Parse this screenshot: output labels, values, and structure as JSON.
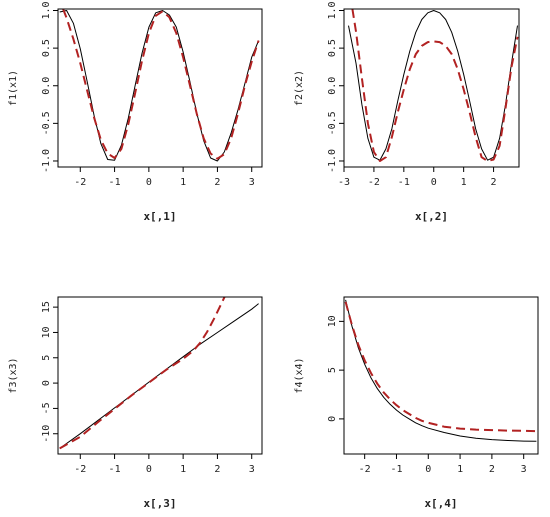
{
  "chart_data": [
    {
      "type": "line",
      "xlabel": "x[,1]",
      "ylabel": "f1(x1)",
      "xlim": [
        -2.65,
        3.3
      ],
      "ylim": [
        -1.08,
        1.02
      ],
      "xticks": [
        -2,
        -1,
        0,
        1,
        2,
        3
      ],
      "xtick_labels": [
        "-2",
        "-1",
        "0",
        "1",
        "2",
        "3"
      ],
      "yticks": [
        -1.0,
        -0.5,
        0.0,
        0.5,
        1.0
      ],
      "ytick_labels": [
        "-1.0",
        "-0.5",
        "0.0",
        "0.5",
        "1.0"
      ],
      "series": [
        {
          "style": "solid",
          "color": "#000000",
          "x": [
            -2.6,
            -2.4,
            -2.2,
            -2.0,
            -1.8,
            -1.6,
            -1.4,
            -1.2,
            -1.0,
            -0.8,
            -0.6,
            -0.4,
            -0.2,
            0.0,
            0.2,
            0.4,
            0.6,
            0.8,
            1.0,
            1.2,
            1.4,
            1.6,
            1.8,
            2.0,
            2.2,
            2.4,
            2.6,
            2.8,
            3.0,
            3.2
          ],
          "y": [
            0.98,
            1.0,
            0.83,
            0.49,
            0.06,
            -0.39,
            -0.77,
            -0.98,
            -0.99,
            -0.79,
            -0.43,
            0.0,
            0.43,
            0.78,
            0.97,
            1.0,
            0.94,
            0.78,
            0.45,
            0.05,
            -0.37,
            -0.73,
            -0.96,
            -1.0,
            -0.88,
            -0.63,
            -0.32,
            0.03,
            0.38,
            0.6
          ]
        },
        {
          "style": "dashed",
          "color": "#b22222",
          "x": [
            -2.5,
            -2.4,
            -2.2,
            -2.0,
            -1.8,
            -1.6,
            -1.4,
            -1.2,
            -1.0,
            -0.8,
            -0.6,
            -0.4,
            -0.2,
            0.0,
            0.2,
            0.4,
            0.6,
            0.8,
            1.0,
            1.2,
            1.4,
            1.6,
            1.8,
            2.0,
            2.2,
            2.4,
            2.6,
            2.8,
            3.0,
            3.2
          ],
          "y": [
            1.02,
            0.9,
            0.62,
            0.3,
            -0.06,
            -0.42,
            -0.72,
            -0.9,
            -0.96,
            -0.84,
            -0.51,
            -0.1,
            0.33,
            0.7,
            0.93,
            0.99,
            0.91,
            0.7,
            0.38,
            0.0,
            -0.38,
            -0.7,
            -0.9,
            -0.97,
            -0.91,
            -0.7,
            -0.37,
            0.0,
            0.32,
            0.6
          ]
        }
      ]
    },
    {
      "type": "line",
      "xlabel": "x[,2]",
      "ylabel": "f2(x2)",
      "xlim": [
        -3.0,
        2.85
      ],
      "ylim": [
        -1.08,
        1.02
      ],
      "xticks": [
        -3,
        -2,
        -1,
        0,
        1,
        2
      ],
      "xtick_labels": [
        "-3",
        "-2",
        "-1",
        "0",
        "1",
        "2"
      ],
      "yticks": [
        -1.0,
        -0.5,
        0.0,
        0.5,
        1.0
      ],
      "ytick_labels": [
        "-1.0",
        "-0.5",
        "0.0",
        "0.5",
        "1.0"
      ],
      "series": [
        {
          "style": "solid",
          "color": "#000000",
          "x": [
            -2.85,
            -2.6,
            -2.4,
            -2.2,
            -2.0,
            -1.8,
            -1.6,
            -1.4,
            -1.2,
            -1.0,
            -0.8,
            -0.6,
            -0.4,
            -0.2,
            0.0,
            0.2,
            0.4,
            0.6,
            0.8,
            1.0,
            1.2,
            1.4,
            1.6,
            1.8,
            2.0,
            2.2,
            2.4,
            2.6,
            2.8
          ],
          "y": [
            0.8,
            0.3,
            -0.25,
            -0.7,
            -0.95,
            -0.99,
            -0.84,
            -0.57,
            -0.2,
            0.15,
            0.46,
            0.71,
            0.88,
            0.97,
            1.0,
            0.97,
            0.88,
            0.71,
            0.46,
            0.15,
            -0.2,
            -0.57,
            -0.84,
            -0.99,
            -0.95,
            -0.7,
            -0.25,
            0.3,
            0.8
          ]
        },
        {
          "style": "dashed",
          "color": "#b22222",
          "x": [
            -2.72,
            -2.6,
            -2.4,
            -2.2,
            -2.0,
            -1.8,
            -1.6,
            -1.4,
            -1.2,
            -1.0,
            -0.8,
            -0.6,
            -0.4,
            -0.2,
            0.0,
            0.2,
            0.4,
            0.6,
            0.8,
            1.0,
            1.2,
            1.4,
            1.6,
            1.8,
            2.0,
            2.2,
            2.4,
            2.6,
            2.8
          ],
          "y": [
            1.02,
            0.72,
            0.1,
            -0.5,
            -0.88,
            -1.0,
            -0.95,
            -0.68,
            -0.35,
            -0.05,
            0.22,
            0.42,
            0.53,
            0.58,
            0.59,
            0.58,
            0.53,
            0.42,
            0.22,
            -0.05,
            -0.35,
            -0.68,
            -0.95,
            -1.0,
            -0.98,
            -0.8,
            -0.3,
            0.25,
            0.65
          ]
        }
      ]
    },
    {
      "type": "line",
      "xlabel": "x[,3]",
      "ylabel": "f3(x3)",
      "xlim": [
        -2.65,
        3.3
      ],
      "ylim": [
        -14.0,
        17.0
      ],
      "xticks": [
        -2,
        -1,
        0,
        1,
        2,
        3
      ],
      "xtick_labels": [
        "-2",
        "-1",
        "0",
        "1",
        "2",
        "3"
      ],
      "yticks": [
        -10,
        -5,
        0,
        5,
        10,
        15
      ],
      "ytick_labels": [
        "-10",
        "-5",
        "0",
        "5",
        "10",
        "15"
      ],
      "series": [
        {
          "style": "solid",
          "color": "#000000",
          "x": [
            -2.6,
            -2.0,
            -1.0,
            0.0,
            1.0,
            1.5,
            2.0,
            2.5,
            3.0,
            3.2
          ],
          "y": [
            -12.9,
            -10.0,
            -4.9,
            0.2,
            5.2,
            7.7,
            10.0,
            12.3,
            14.6,
            15.7
          ]
        },
        {
          "style": "dashed",
          "color": "#b22222",
          "x": [
            -2.6,
            -2.0,
            -1.5,
            -1.0,
            -0.5,
            0.0,
            0.5,
            1.0,
            1.3,
            1.5,
            1.7,
            1.9,
            2.1,
            2.3
          ],
          "y": [
            -12.9,
            -10.6,
            -7.8,
            -5.1,
            -2.4,
            0.1,
            2.6,
            4.8,
            6.4,
            8.0,
            10.1,
            12.7,
            15.5,
            18.3
          ]
        }
      ]
    },
    {
      "type": "line",
      "xlabel": "x[,4]",
      "ylabel": "f4(x4)",
      "xlim": [
        -2.65,
        3.45
      ],
      "ylim": [
        -3.6,
        12.5
      ],
      "xticks": [
        -2,
        -1,
        0,
        1,
        2,
        3
      ],
      "xtick_labels": [
        "-2",
        "-1",
        "0",
        "1",
        "2",
        "3"
      ],
      "yticks": [
        0,
        5,
        10
      ],
      "ytick_labels": [
        "0",
        "5",
        "10"
      ],
      "series": [
        {
          "style": "solid",
          "color": "#000000",
          "x": [
            -2.6,
            -2.4,
            -2.2,
            -2.0,
            -1.8,
            -1.6,
            -1.4,
            -1.2,
            -1.0,
            -0.8,
            -0.6,
            -0.4,
            -0.2,
            0.0,
            0.5,
            1.0,
            1.5,
            2.0,
            2.5,
            3.0,
            3.4
          ],
          "y": [
            12.2,
            9.5,
            7.3,
            5.6,
            4.2,
            3.1,
            2.2,
            1.5,
            0.9,
            0.4,
            0.0,
            -0.4,
            -0.7,
            -0.95,
            -1.4,
            -1.75,
            -1.98,
            -2.12,
            -2.22,
            -2.28,
            -2.3
          ]
        },
        {
          "style": "dashed",
          "color": "#b22222",
          "x": [
            -2.6,
            -2.4,
            -2.2,
            -2.0,
            -1.8,
            -1.6,
            -1.4,
            -1.2,
            -1.0,
            -0.8,
            -0.6,
            -0.4,
            -0.2,
            0.0,
            0.5,
            1.0,
            1.5,
            2.0,
            2.5,
            3.0,
            3.4
          ],
          "y": [
            12.0,
            9.6,
            7.6,
            6.0,
            4.7,
            3.6,
            2.7,
            2.0,
            1.4,
            0.9,
            0.5,
            0.1,
            -0.2,
            -0.4,
            -0.8,
            -1.0,
            -1.1,
            -1.15,
            -1.2,
            -1.22,
            -1.25
          ]
        }
      ]
    }
  ]
}
